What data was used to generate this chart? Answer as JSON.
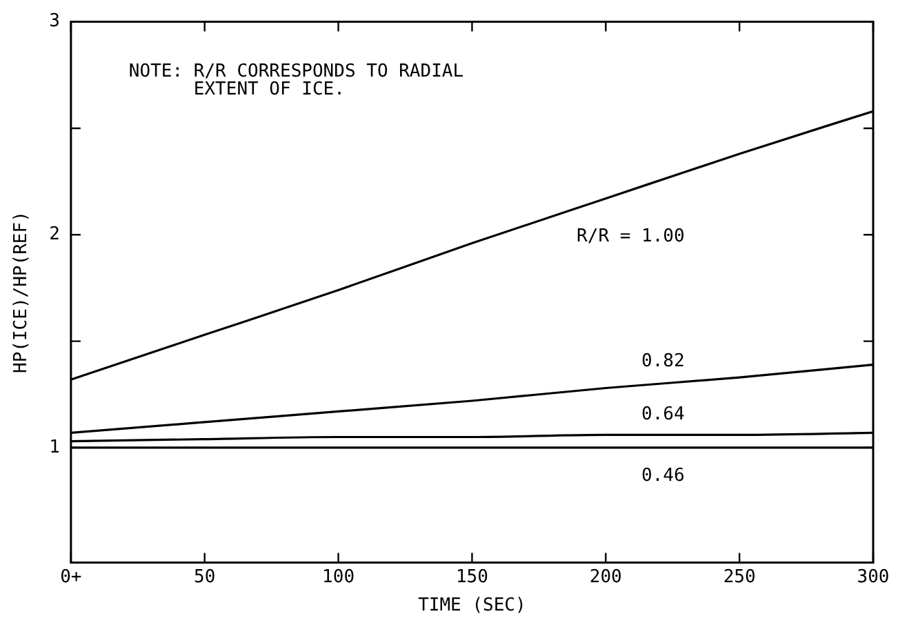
{
  "chart_data": {
    "type": "line",
    "xlabel": "TIME (SEC)",
    "ylabel": "HP(ICE)/HP(REF)",
    "x": [
      0,
      50,
      100,
      150,
      200,
      250,
      300
    ],
    "series": [
      {
        "name": "R/R = 1.00",
        "color": "#000000",
        "values": [
          1.32,
          1.53,
          1.74,
          1.96,
          2.17,
          2.38,
          2.58
        ]
      },
      {
        "name": "0.82",
        "color": "#000000",
        "values": [
          1.07,
          1.12,
          1.17,
          1.22,
          1.28,
          1.33,
          1.39
        ]
      },
      {
        "name": "0.64",
        "color": "#000000",
        "values": [
          1.03,
          1.04,
          1.05,
          1.05,
          1.06,
          1.06,
          1.07
        ]
      },
      {
        "name": "0.46",
        "color": "#000000",
        "values": [
          1.0,
          1.0,
          1.0,
          1.0,
          1.0,
          1.0,
          1.0
        ]
      }
    ],
    "xlim": [
      0,
      300
    ],
    "xticks": [
      {
        "value": 0,
        "label": "0+"
      },
      50,
      100,
      150,
      200,
      250,
      300
    ],
    "ylim": [
      0.46,
      3
    ],
    "yticks": [
      1,
      {
        "value": 1.5,
        "label": null
      },
      2,
      {
        "value": 2.5,
        "label": null
      },
      3
    ],
    "grid": false,
    "legend": false,
    "marker": "none",
    "line_style": "solid",
    "annotations": [
      "NOTE: R/R CORRESPONDS TO RADIAL\n      EXTENT OF ICE."
    ]
  }
}
